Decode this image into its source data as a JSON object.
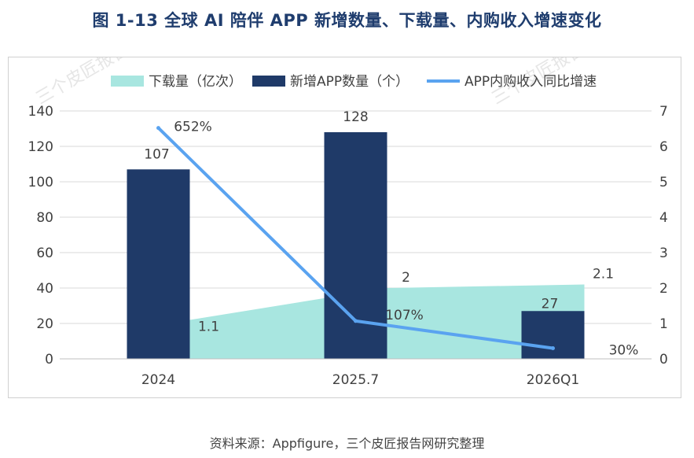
{
  "title": "图 1-13  全球 AI 陪伴 APP 新增数量、下载量、内购收入增速变化",
  "source": "资料来源：Appfigure，三个皮匠报告网研究整理",
  "watermark": "三个皮匠报告",
  "colors": {
    "area": "#a8e6e0",
    "bar": "#1f3a68",
    "line": "#5aa3f0",
    "title": "#1f3d6e"
  },
  "chart_data": {
    "type": "bar",
    "categories": [
      "2024",
      "2025.7",
      "2026Q1"
    ],
    "left_axis": {
      "ylim": [
        0,
        140
      ],
      "ticks": [
        0,
        20,
        40,
        60,
        80,
        100,
        120,
        140
      ]
    },
    "right_axis": {
      "ylim": [
        0,
        7
      ],
      "ticks": [
        0,
        1,
        2,
        3,
        4,
        5,
        6,
        7
      ]
    },
    "series": [
      {
        "name": "下载量（亿次）",
        "kind": "area",
        "axis": "right",
        "values": [
          1.1,
          2,
          2.1
        ],
        "labels": [
          "1.1",
          "2",
          "2.1"
        ]
      },
      {
        "name": "新增APP数量（个）",
        "kind": "bar",
        "axis": "left",
        "values": [
          107,
          128,
          27
        ],
        "labels": [
          "107",
          "128",
          "27"
        ]
      },
      {
        "name": "APP内购收入同比增速",
        "kind": "line",
        "axis": "right",
        "values": [
          6.52,
          1.07,
          0.3
        ],
        "labels": [
          "652%",
          "107%",
          "30%"
        ]
      }
    ]
  }
}
